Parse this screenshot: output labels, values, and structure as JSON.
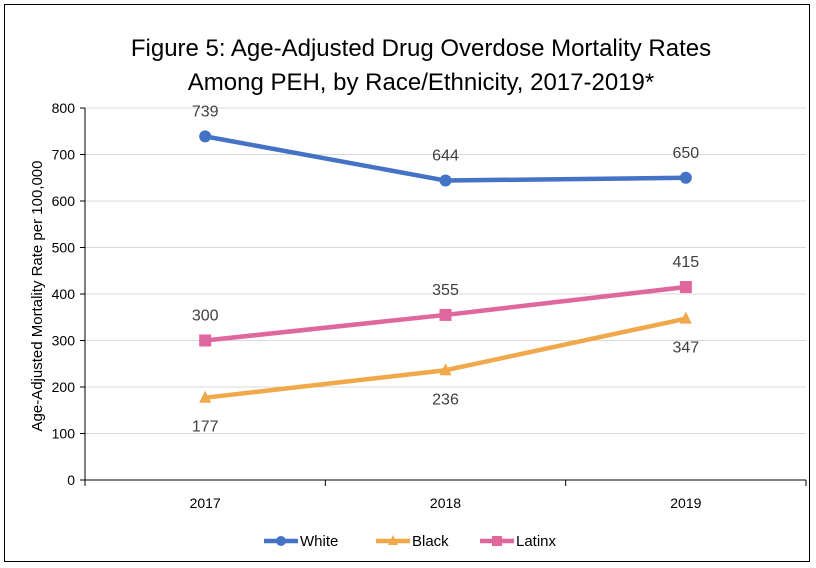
{
  "chart_data": {
    "type": "line",
    "title_lines": [
      "Figure 5: Age-Adjusted Drug Overdose Mortality Rates",
      "Among PEH, by Race/Ethnicity, 2017-2019*"
    ],
    "xlabel": "",
    "ylabel": "Age-Adjusted Mortality Rate per 100,000",
    "categories": [
      "2017",
      "2018",
      "2019"
    ],
    "ylim": [
      0,
      800
    ],
    "yticks": [
      0,
      100,
      200,
      300,
      400,
      500,
      600,
      700,
      800
    ],
    "grid": true,
    "legend_position": "bottom",
    "series": [
      {
        "name": "White",
        "values": [
          739,
          644,
          650
        ],
        "color": "#4472C4",
        "marker": "circle",
        "label_pos": [
          "above",
          "above",
          "above"
        ]
      },
      {
        "name": "Black",
        "values": [
          177,
          236,
          347
        ],
        "color": "#F0A84A",
        "marker": "triangle",
        "label_pos": [
          "below",
          "below",
          "below"
        ]
      },
      {
        "name": "Latinx",
        "values": [
          300,
          355,
          415
        ],
        "color": "#E0679E",
        "marker": "square",
        "label_pos": [
          "above",
          "above",
          "above"
        ]
      }
    ]
  }
}
